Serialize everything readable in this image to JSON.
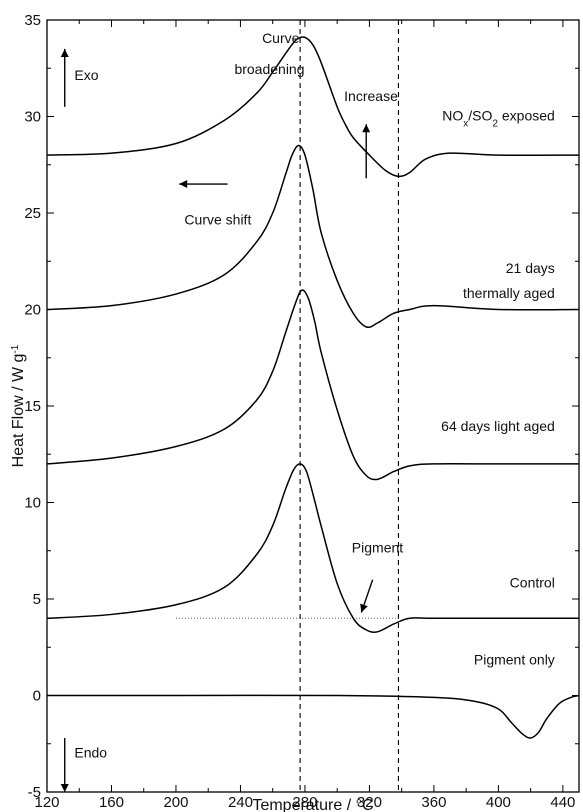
{
  "chart_data": {
    "type": "line",
    "title": "",
    "xlabel": "Temperature  / °C",
    "ylabel_main": "Heat Flow  / W g",
    "ylabel_sup": "-1",
    "xlim": [
      120,
      450
    ],
    "ylim": [
      -5,
      35
    ],
    "xticks": [
      120,
      160,
      200,
      240,
      280,
      320,
      360,
      400,
      440
    ],
    "yticks": [
      -5,
      0,
      5,
      10,
      15,
      20,
      25,
      30,
      35
    ],
    "grid": false,
    "series": [
      {
        "name": "NOx/SO2 exposed",
        "x": [
          120,
          160,
          200,
          230,
          250,
          260,
          270,
          275,
          280,
          285,
          290,
          300,
          305,
          310,
          320,
          330,
          338,
          345,
          355,
          370,
          400,
          450
        ],
        "y": [
          28.0,
          28.1,
          28.6,
          29.8,
          31.2,
          32.3,
          33.5,
          34.0,
          34.1,
          33.7,
          32.8,
          30.5,
          29.6,
          28.9,
          28.0,
          27.2,
          26.9,
          27.1,
          27.8,
          28.1,
          28.0,
          28.0
        ]
      },
      {
        "name": "21 days thermally aged",
        "x": [
          120,
          160,
          200,
          230,
          250,
          260,
          268,
          272,
          276,
          280,
          285,
          290,
          300,
          310,
          318,
          325,
          335,
          345,
          360,
          400,
          450
        ],
        "y": [
          20.0,
          20.2,
          20.8,
          21.8,
          23.5,
          25.0,
          27.0,
          28.0,
          28.5,
          28.0,
          26.2,
          24.0,
          21.5,
          19.8,
          19.1,
          19.3,
          19.8,
          20.0,
          20.2,
          20.0,
          20.0
        ]
      },
      {
        "name": "64 days light aged",
        "x": [
          120,
          160,
          200,
          230,
          250,
          260,
          268,
          274,
          278,
          282,
          286,
          290,
          300,
          310,
          318,
          325,
          335,
          345,
          360,
          400,
          450
        ],
        "y": [
          12.0,
          12.3,
          12.9,
          13.8,
          15.3,
          16.8,
          18.8,
          20.3,
          21.0,
          20.6,
          19.4,
          17.8,
          14.8,
          12.4,
          11.4,
          11.2,
          11.6,
          11.9,
          12.0,
          12.0,
          12.0
        ]
      },
      {
        "name": "Control",
        "x": [
          120,
          160,
          200,
          230,
          250,
          260,
          268,
          273,
          277,
          281,
          286,
          290,
          300,
          310,
          318,
          325,
          335,
          345,
          360,
          400,
          450
        ],
        "y": [
          4.0,
          4.2,
          4.7,
          5.6,
          7.3,
          8.8,
          10.7,
          11.7,
          12.0,
          11.6,
          10.1,
          8.8,
          5.8,
          4.0,
          3.4,
          3.3,
          3.7,
          4.0,
          4.0,
          4.0,
          4.0
        ]
      },
      {
        "name": "Pigment only",
        "x": [
          120,
          200,
          300,
          360,
          385,
          400,
          408,
          415,
          420,
          425,
          430,
          438,
          445,
          450
        ],
        "y": [
          0.0,
          0.0,
          0.0,
          -0.1,
          -0.3,
          -0.7,
          -1.4,
          -2.0,
          -2.2,
          -1.9,
          -1.2,
          -0.4,
          -0.1,
          0.0
        ]
      }
    ],
    "series_labels": [
      {
        "id": "nox",
        "text": "NO",
        "sub1": "x",
        "mid": "/SO",
        "sub2": "2",
        "tail": " exposed",
        "x": 435,
        "y": 29.8
      },
      {
        "id": "thermal1",
        "text": "21 days",
        "x": 435,
        "y": 21.9
      },
      {
        "id": "thermal2",
        "text": "thermally aged",
        "x": 435,
        "y": 20.6
      },
      {
        "id": "light",
        "text": "64 days light aged",
        "x": 435,
        "y": 13.7
      },
      {
        "id": "control",
        "text": "Control",
        "x": 435,
        "y": 5.6
      },
      {
        "id": "pigment_only",
        "text": "Pigment only",
        "x": 435,
        "y": 1.6
      }
    ],
    "annotations": {
      "exo": "Exo",
      "endo": "Endo",
      "curve_broadening_1": "Curve",
      "curve_broadening_2": "broadening",
      "increase": "Increase",
      "curve_shift": "Curve shift",
      "pigment": "Pigment"
    },
    "reference_lines": [
      {
        "type": "vertical",
        "x": 277,
        "style": "dashed"
      },
      {
        "type": "vertical",
        "x": 338,
        "style": "dashed"
      },
      {
        "type": "horizontal",
        "y": 4,
        "x_from": 200,
        "x_to": 338,
        "style": "dotted"
      }
    ]
  }
}
